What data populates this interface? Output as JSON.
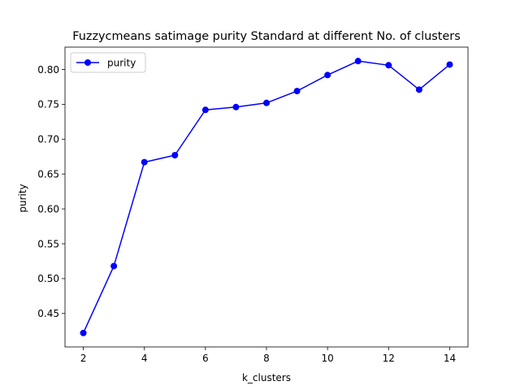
{
  "chart_data": {
    "type": "line",
    "title": "Fuzzycmeans satimage purity Standard at different No. of clusters",
    "xlabel": "k_clusters",
    "ylabel": "purity",
    "x": [
      2,
      3,
      4,
      5,
      6,
      7,
      8,
      9,
      10,
      11,
      12,
      13,
      14
    ],
    "series": [
      {
        "name": "purity",
        "color": "#0000ff",
        "marker": "circle",
        "values": [
          0.422,
          0.518,
          0.667,
          0.677,
          0.742,
          0.746,
          0.752,
          0.769,
          0.792,
          0.812,
          0.806,
          0.771,
          0.807
        ]
      }
    ],
    "xlim": [
      1.4,
      14.6
    ],
    "ylim": [
      0.402,
      0.832
    ],
    "xticks": [
      2,
      4,
      6,
      8,
      10,
      12,
      14
    ],
    "xtick_labels": [
      "2",
      "4",
      "6",
      "8",
      "10",
      "12",
      "14"
    ],
    "yticks": [
      0.45,
      0.5,
      0.55,
      0.6,
      0.65,
      0.7,
      0.75,
      0.8
    ],
    "ytick_labels": [
      "0.45",
      "0.50",
      "0.55",
      "0.60",
      "0.65",
      "0.70",
      "0.75",
      "0.80"
    ],
    "grid": false,
    "legend": {
      "position": "top-left",
      "entries": [
        "purity"
      ]
    }
  }
}
